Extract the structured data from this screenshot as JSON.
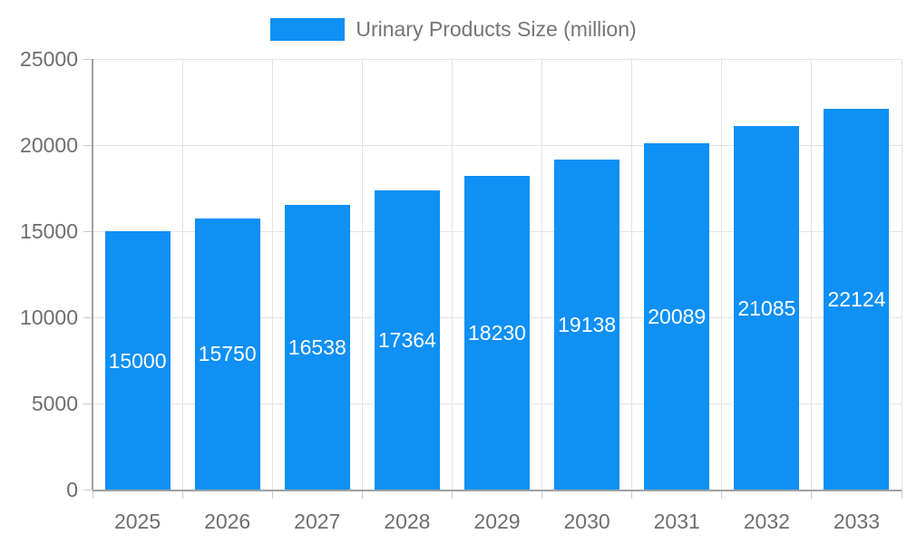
{
  "legend": {
    "label": "Urinary Products Size (million)"
  },
  "chart_data": {
    "type": "bar",
    "title": "Urinary Products Size (million)",
    "categories": [
      "2025",
      "2026",
      "2027",
      "2028",
      "2029",
      "2030",
      "2031",
      "2032",
      "2033"
    ],
    "values": [
      15000,
      15750,
      16538,
      17364,
      18230,
      19138,
      20089,
      21085,
      22124
    ],
    "series": [
      {
        "name": "Urinary Products Size (million)",
        "values": [
          15000,
          15750,
          16538,
          17364,
          18230,
          19138,
          20089,
          21085,
          22124
        ]
      }
    ],
    "xlabel": "",
    "ylabel": "",
    "ylim": [
      0,
      25000
    ],
    "yticks": [
      0,
      5000,
      10000,
      15000,
      20000,
      25000
    ],
    "grid": true,
    "legend_position": "top-center",
    "value_label_position": "inside-center"
  },
  "colors": {
    "bar": "#0e90f5",
    "bar_value_text": "#ffffff",
    "axis_label_text": "#6e6e6e",
    "legend_text": "#757575",
    "gridline": "#e3e3e3",
    "axis_line": "#a0a0a0",
    "background": "#ffffff"
  }
}
